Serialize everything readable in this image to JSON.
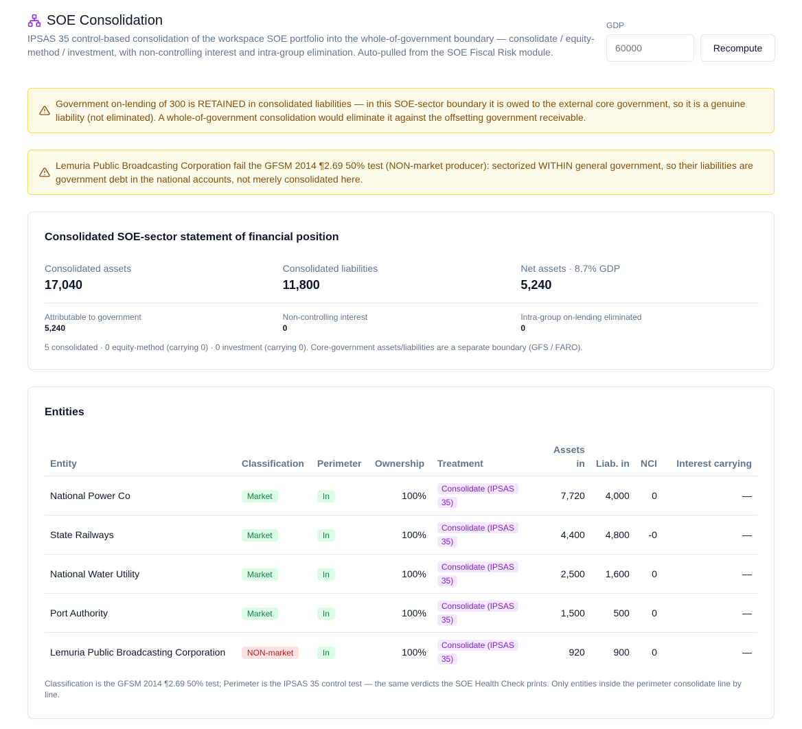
{
  "header": {
    "title": "SOE Consolidation",
    "subtitle": "IPSAS 35 control-based consolidation of the workspace SOE portfolio into the whole-of-government boundary — consolidate / equity-method / investment, with non-controlling interest and intra-group elimination. Auto-pulled from the SOE Fiscal Risk module."
  },
  "gdp": {
    "label": "GDP",
    "placeholder": "60000",
    "recompute_label": "Recompute"
  },
  "alerts": [
    {
      "text": "Government on-lending of 300 is RETAINED in consolidated liabilities — in this SOE-sector boundary it is owed to the external core government, so it is a genuine liability (not eliminated). A whole-of-government consolidation would eliminate it against the offsetting government receivable."
    },
    {
      "text": "Lemuria Public Broadcasting Corporation fail the GFSM 2014 ¶2.69 50% test (NON-market producer): sectorized WITHIN general government, so their liabilities are government debt in the national accounts, not merely consolidated here."
    }
  ],
  "summary": {
    "title": "Consolidated SOE-sector statement of financial position",
    "metrics": [
      {
        "label": "Consolidated assets",
        "value": "17,040"
      },
      {
        "label": "Consolidated liabilities",
        "value": "11,800"
      },
      {
        "label": "Net assets · 8.7% GDP",
        "value": "5,240"
      }
    ],
    "submetrics": [
      {
        "label": "Attributable to government",
        "value": "5,240"
      },
      {
        "label": "Non-controlling interest",
        "value": "0"
      },
      {
        "label": "Intra-group on-lending eliminated",
        "value": "0"
      }
    ],
    "note": "5 consolidated · 0 equity-method (carrying 0) · 0 investment (carrying 0). Core-government assets/liabilities are a separate boundary (GFS / FARO)."
  },
  "entities": {
    "title": "Entities",
    "columns": [
      "Entity",
      "Classification",
      "Perimeter",
      "Ownership",
      "Treatment",
      "Assets in",
      "Liab. in",
      "NCI",
      "Interest carrying"
    ],
    "rows": [
      {
        "entity": "National Power Co",
        "classification": "Market",
        "perimeter": "In",
        "ownership": "100%",
        "treatment": "Consolidate (IPSAS 35)",
        "assets": "7,720",
        "liab": "4,000",
        "nci": "0",
        "interest": "—"
      },
      {
        "entity": "State Railways",
        "classification": "Market",
        "perimeter": "In",
        "ownership": "100%",
        "treatment": "Consolidate (IPSAS 35)",
        "assets": "4,400",
        "liab": "4,800",
        "nci": "-0",
        "interest": "—"
      },
      {
        "entity": "National Water Utility",
        "classification": "Market",
        "perimeter": "In",
        "ownership": "100%",
        "treatment": "Consolidate (IPSAS 35)",
        "assets": "2,500",
        "liab": "1,600",
        "nci": "0",
        "interest": "—"
      },
      {
        "entity": "Port Authority",
        "classification": "Market",
        "perimeter": "In",
        "ownership": "100%",
        "treatment": "Consolidate (IPSAS 35)",
        "assets": "1,500",
        "liab": "500",
        "nci": "0",
        "interest": "—"
      },
      {
        "entity": "Lemuria Public Broadcasting Corporation",
        "classification": "NON-market",
        "perimeter": "In",
        "ownership": "100%",
        "treatment": "Consolidate (IPSAS 35)",
        "assets": "920",
        "liab": "900",
        "nci": "0",
        "interest": "—"
      }
    ],
    "note": "Classification is the GFSM 2014 ¶2.69 50% test; Perimeter is the IPSAS 35 control test — the same verdicts the SOE Health Check prints. Only entities inside the perimeter consolidate line by line."
  },
  "icons": {
    "title_icon": "network-icon",
    "alert_icon": "warning-triangle-icon"
  },
  "colors": {
    "accent": "#9333ea",
    "warning_bg": "#fefce8",
    "warning_text": "#854d0e",
    "market_badge": "#dcfce7",
    "nonmarket_badge": "#fee2e2",
    "treatment_badge": "#f3e8ff"
  }
}
